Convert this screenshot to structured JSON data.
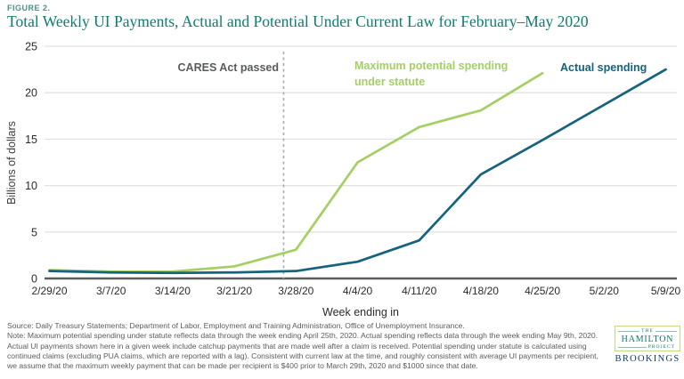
{
  "header": {
    "figure_label": "FIGURE 2.",
    "title": "Total Weekly UI Payments, Actual and Potential Under Current Law for February–May 2020"
  },
  "chart_data": {
    "type": "line",
    "title": "Total Weekly UI Payments, Actual and Potential Under Current Law for February–May 2020",
    "xlabel": "Week ending in",
    "ylabel": "Billions of dollars",
    "ylim": [
      0,
      25
    ],
    "yticks": [
      0,
      5,
      10,
      15,
      20,
      25
    ],
    "grid": "horizontal",
    "legend_position": "inline-labels",
    "categories": [
      "2/29/20",
      "3/7/20",
      "3/14/20",
      "3/21/20",
      "3/28/20",
      "4/4/20",
      "4/11/20",
      "4/18/20",
      "4/25/20",
      "5/2/20",
      "5/9/20"
    ],
    "series": [
      {
        "name": "Maximum potential spending under statute",
        "color": "#a4cf63",
        "values": [
          0.9,
          0.75,
          0.75,
          1.3,
          3.1,
          12.5,
          16.3,
          18.1,
          22.1
        ]
      },
      {
        "name": "Actual spending",
        "color": "#15637d",
        "values": [
          0.8,
          0.65,
          0.6,
          0.65,
          0.8,
          1.8,
          4.1,
          11.2,
          14.9,
          18.7,
          22.5
        ]
      }
    ],
    "annotation": {
      "label": "CARES Act passed",
      "x_index": 3.8
    },
    "colors": {
      "gridline": "#e3e3e3",
      "axis": "#595b5e",
      "dashed_line": "#a7a9ac",
      "tick_text": "#2b2b2b"
    }
  },
  "footer": {
    "source": "Source: Daily Treasury Statements; Department of Labor, Employment and Training Administration, Office of Unemployment Insurance.",
    "note": "Note: Maximum potential spending under statute reflects data through the week ending April 25th, 2020. Actual spending reflects data through the week ending May 9th, 2020. Actual UI payments shown here in a given week include catchup payments that are made well after a claim is received. Potential spending under statute is calculated using continued claims (excluding PUA claims, which are reported with a lag). Consistent with current law at the time, and roughly consistent with average UI payments per recipient, we assume that the maximum weekly payment that can be made per recipient is $400 prior to March 29th, 2020 and $1000 since that date."
  },
  "logo": {
    "the": "THE",
    "hamilton": "HAMILTON",
    "project": "PROJECT",
    "brookings": "BROOKINGS"
  }
}
